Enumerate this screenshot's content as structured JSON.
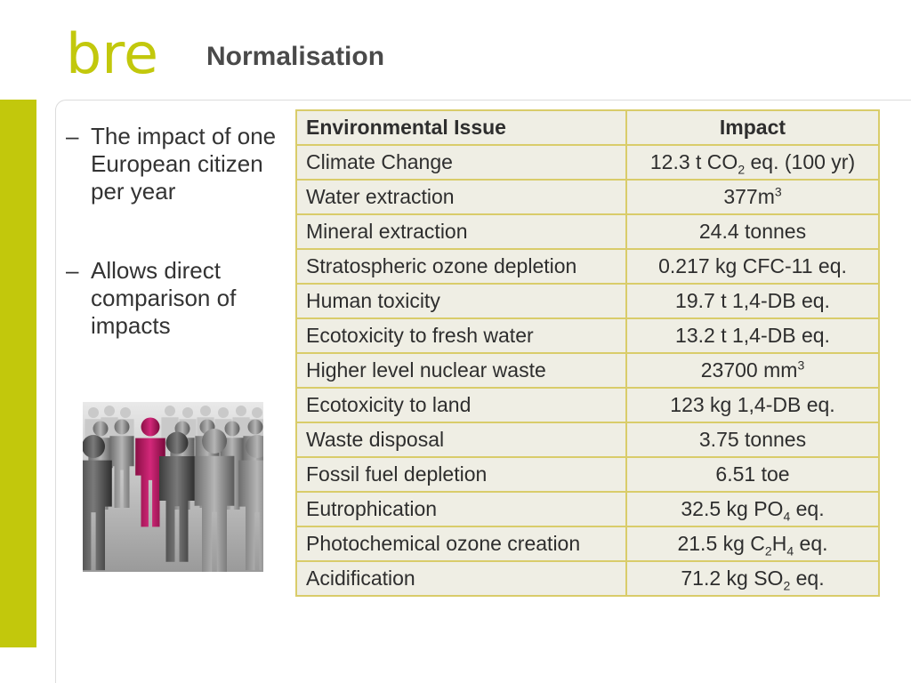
{
  "header": {
    "logo_text": "bre",
    "title": "Normalisation"
  },
  "colors": {
    "brand_green": "#c2c80c",
    "table_border": "#d9cc6a",
    "table_cell": "#efeee4",
    "highlight_figure": "#c2185b"
  },
  "bullets": [
    {
      "dash": "–",
      "text": "The impact of one European citizen per year"
    },
    {
      "dash": "–",
      "text": "Allows direct comparison of impacts"
    }
  ],
  "image": {
    "icon": "crowd-people-icon"
  },
  "table": {
    "headers": [
      "Environmental Issue",
      "Impact"
    ],
    "rows": [
      {
        "issue": "Climate Change",
        "impact": [
          {
            "t": "12.3 t CO"
          },
          {
            "t": "2",
            "sub": true
          },
          {
            "t": " eq. (100 yr)"
          }
        ]
      },
      {
        "issue": "Water extraction",
        "impact": [
          {
            "t": "377m"
          },
          {
            "t": "3",
            "sup": true
          }
        ]
      },
      {
        "issue": "Mineral extraction",
        "impact": [
          {
            "t": "24.4 tonnes"
          }
        ]
      },
      {
        "issue": "Stratospheric ozone depletion",
        "impact": [
          {
            "t": "0.217 kg CFC-11 eq."
          }
        ]
      },
      {
        "issue": "Human toxicity",
        "impact": [
          {
            "t": "19.7 t 1,4-DB eq."
          }
        ]
      },
      {
        "issue": "Ecotoxicity to fresh water",
        "impact": [
          {
            "t": "13.2 t 1,4-DB eq."
          }
        ]
      },
      {
        "issue": "Higher level nuclear waste",
        "impact": [
          {
            "t": "23700 mm"
          },
          {
            "t": "3",
            "sup": true
          }
        ]
      },
      {
        "issue": "Ecotoxicity to land",
        "impact": [
          {
            "t": "123 kg 1,4-DB eq."
          }
        ]
      },
      {
        "issue": "Waste disposal",
        "impact": [
          {
            "t": "3.75 tonnes"
          }
        ]
      },
      {
        "issue": "Fossil fuel depletion",
        "impact": [
          {
            "t": "6.51 toe"
          }
        ]
      },
      {
        "issue": "Eutrophication",
        "impact": [
          {
            "t": "32.5 kg PO"
          },
          {
            "t": "4",
            "sub": true
          },
          {
            "t": " eq."
          }
        ]
      },
      {
        "issue": "Photochemical ozone creation",
        "impact": [
          {
            "t": "21.5 kg C"
          },
          {
            "t": "2",
            "sub": true
          },
          {
            "t": "H"
          },
          {
            "t": "4",
            "sub": true
          },
          {
            "t": " eq."
          }
        ]
      },
      {
        "issue": "Acidification",
        "impact": [
          {
            "t": "71.2 kg SO"
          },
          {
            "t": "2",
            "sub": true
          },
          {
            "t": " eq."
          }
        ]
      }
    ]
  }
}
